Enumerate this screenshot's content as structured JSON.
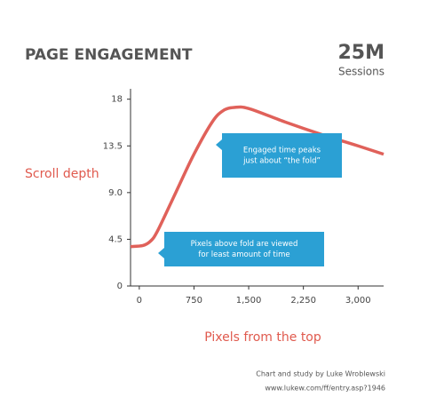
{
  "chart_data": {
    "type": "line",
    "title": "PAGE ENGAGEMENT",
    "headline": "25M",
    "headline_caption": "Sessions",
    "y_label": "Scroll depth",
    "x_label": "Pixels from the top",
    "credits": [
      "Chart and study by Luke Wroblewski",
      "www.lukew.com/ff/entry.asp?1946"
    ],
    "annotations": [
      {
        "lines": [
          "Engaged time peaks",
          "just about “the fold”"
        ]
      },
      {
        "lines": [
          "Pixels above fold are viewed",
          "for least amount of time"
        ]
      }
    ],
    "x": [
      -120,
      50,
      150,
      250,
      500,
      750,
      1000,
      1150,
      1300,
      1500,
      2000,
      2500,
      3000,
      3350
    ],
    "series": [
      {
        "name": "Scroll depth",
        "color": "#e0615a",
        "values": [
          3.8,
          3.9,
          4.3,
          5.3,
          9,
          12.7,
          15.8,
          16.9,
          17.2,
          17.1,
          15.8,
          14.6,
          13.5,
          12.7
        ]
      }
    ],
    "xlim": [
      -120,
      3350
    ],
    "ylim": [
      0,
      19
    ],
    "xticks": [
      0,
      750,
      {
        "value": 1500,
        "label": "1,500"
      },
      {
        "value": 2250,
        "label": "2,250"
      },
      {
        "value": 3000,
        "label": "3,000"
      }
    ],
    "yticks": [
      0,
      4.5,
      {
        "value": 9,
        "label": "9.0"
      },
      13.5,
      18
    ]
  }
}
